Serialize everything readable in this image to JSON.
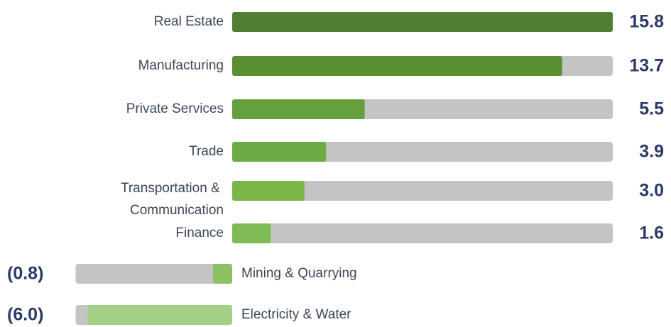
{
  "chart_data": {
    "type": "bar",
    "orientation": "horizontal",
    "categories": [
      "Real Estate",
      "Manufacturing",
      "Private Services",
      "Trade",
      "Transportation & Communication",
      "Finance",
      "Mining & Quarrying",
      "Electricity & Water"
    ],
    "values": [
      15.8,
      13.7,
      5.5,
      3.9,
      3.0,
      1.6,
      -0.8,
      -6.0
    ],
    "value_labels": [
      "15.8",
      "13.7",
      "5.5",
      "3.9",
      "3.0",
      "1.6",
      "(0.8)",
      "(6.0)"
    ],
    "colors": [
      "#507e32",
      "#5a8f34",
      "#64a03e",
      "#6cab44",
      "#7ab648",
      "#7fbb55",
      "#8cc163",
      "#a3cf87"
    ],
    "track_color": "#c4c4c4",
    "xlim": [
      -6.5,
      15.8
    ]
  }
}
